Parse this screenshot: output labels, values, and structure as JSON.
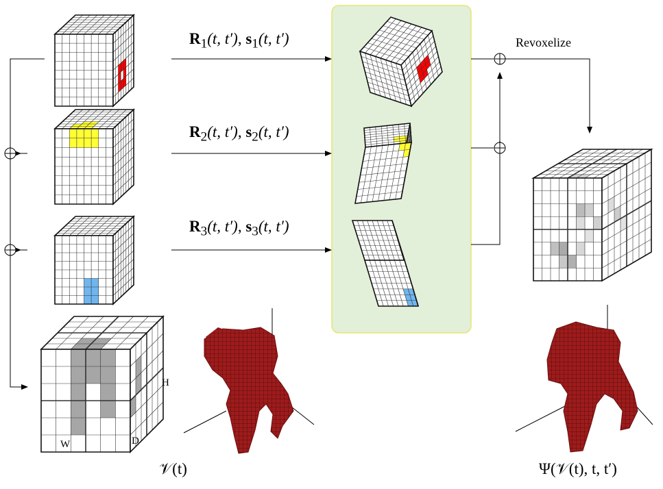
{
  "diagram": {
    "transform_labels": [
      {
        "mat": "R",
        "vec": "s",
        "index": "1",
        "args": "(t, t′)"
      },
      {
        "mat": "R",
        "vec": "s",
        "index": "2",
        "args": "(t, t′)"
      },
      {
        "mat": "R",
        "vec": "s",
        "index": "3",
        "args": "(t, t′)"
      }
    ],
    "revoxelize_label": "Revoxelize",
    "input_label": "𝒱(t)",
    "output_label": "Ψ(𝒱(t), t, t′)",
    "dim_labels": {
      "h": "H",
      "w": "W",
      "d": "D"
    },
    "colors": {
      "panel_fill": "#e2efd9",
      "panel_border": "#e6e670",
      "highlight_red": "#ff0000",
      "highlight_yellow": "#ffff33",
      "highlight_blue": "#6fb6ef",
      "highlight_gray": "#a6a6a6",
      "figure_red": "#9e1c1c"
    }
  }
}
